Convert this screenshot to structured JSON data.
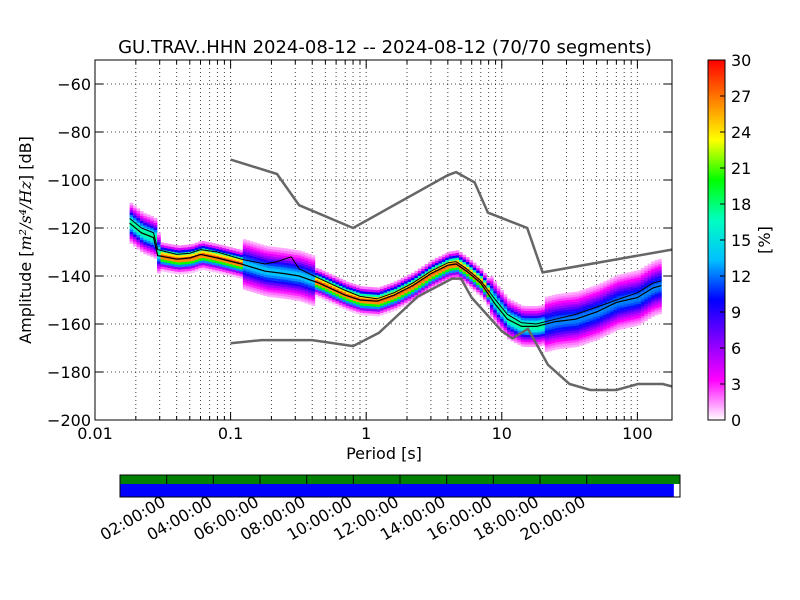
{
  "chart_data": {
    "type": "heatmap",
    "title": "GU.TRAV..HHN   2024-08-12 -- 2024-08-12  (70/70 segments)",
    "xlabel": "Period [s]",
    "ylabel_prefix": "Amplitude [",
    "ylabel_unit_math": "m²/s⁴/Hz",
    "ylabel_suffix": "] [dB]",
    "x_scale": "log",
    "xlim": [
      0.01,
      180
    ],
    "ylim": [
      -200,
      -50
    ],
    "grid": true,
    "x_ticks": [
      {
        "value": 0.01,
        "label": "0.01"
      },
      {
        "value": 0.1,
        "label": "0.1"
      },
      {
        "value": 1,
        "label": "1"
      },
      {
        "value": 10,
        "label": "10"
      },
      {
        "value": 100,
        "label": "100"
      }
    ],
    "y_ticks": [
      {
        "value": -60,
        "label": "−60"
      },
      {
        "value": -80,
        "label": "−80"
      },
      {
        "value": -100,
        "label": "−100"
      },
      {
        "value": -120,
        "label": "−120"
      },
      {
        "value": -140,
        "label": "−140"
      },
      {
        "value": -160,
        "label": "−160"
      },
      {
        "value": -180,
        "label": "−180"
      },
      {
        "value": -200,
        "label": "−200"
      }
    ],
    "colorbar": {
      "label": "[%]",
      "range": [
        0,
        30
      ],
      "ticks": [
        "0",
        "3",
        "6",
        "9",
        "12",
        "15",
        "18",
        "21",
        "24",
        "27",
        "30"
      ],
      "colormap": [
        "#ffffff",
        "#ff00ff",
        "#8000ff",
        "#0000ff",
        "#00c0ff",
        "#00ffc0",
        "#00ff00",
        "#ffff00",
        "#ff8000",
        "#ff0000"
      ]
    },
    "noise_model_high": [
      [
        0.1,
        -91.5
      ],
      [
        0.22,
        -97.5
      ],
      [
        0.32,
        -110.5
      ],
      [
        0.8,
        -120
      ],
      [
        4,
        -98
      ],
      [
        4.6,
        -96.7
      ],
      [
        6.3,
        -101
      ],
      [
        7.9,
        -113.6
      ],
      [
        15.4,
        -120
      ],
      [
        20,
        -138.5
      ],
      [
        180,
        -129
      ]
    ],
    "noise_model_low": [
      [
        0.1,
        -168
      ],
      [
        0.17,
        -166.7
      ],
      [
        0.4,
        -166.7
      ],
      [
        0.8,
        -169.2
      ],
      [
        1.24,
        -163.7
      ],
      [
        2.4,
        -148.6
      ],
      [
        4.3,
        -141.1
      ],
      [
        5,
        -141.1
      ],
      [
        6,
        -149
      ],
      [
        10,
        -163
      ],
      [
        12,
        -166
      ],
      [
        15.6,
        -162
      ],
      [
        21.9,
        -177
      ],
      [
        31.6,
        -185
      ],
      [
        45,
        -187.5
      ],
      [
        70,
        -187.5
      ],
      [
        101,
        -185
      ],
      [
        154,
        -185
      ],
      [
        180,
        -186
      ]
    ],
    "mode_curve": [
      [
        0.018,
        -118
      ],
      [
        0.022,
        -122
      ],
      [
        0.027,
        -124
      ],
      [
        0.029,
        -131.5
      ],
      [
        0.04,
        -133
      ],
      [
        0.05,
        -132.5
      ],
      [
        0.06,
        -131
      ],
      [
        0.08,
        -132.5
      ],
      [
        0.12,
        -135
      ],
      [
        0.18,
        -138
      ],
      [
        0.25,
        -139
      ],
      [
        0.32,
        -140
      ],
      [
        0.45,
        -143
      ],
      [
        0.7,
        -148
      ],
      [
        0.9,
        -150
      ],
      [
        1.2,
        -150.5
      ],
      [
        1.6,
        -148
      ],
      [
        2.2,
        -144
      ],
      [
        3,
        -139
      ],
      [
        4,
        -135.5
      ],
      [
        4.6,
        -135
      ],
      [
        5.5,
        -138
      ],
      [
        7,
        -143
      ],
      [
        9,
        -152
      ],
      [
        11,
        -158
      ],
      [
        14,
        -161
      ],
      [
        18,
        -161
      ],
      [
        25,
        -159
      ],
      [
        35,
        -158
      ],
      [
        50,
        -155
      ],
      [
        70,
        -151
      ],
      [
        100,
        -149
      ],
      [
        130,
        -145
      ],
      [
        150,
        -144
      ]
    ],
    "mean_curve": [
      [
        0.018,
        -116
      ],
      [
        0.022,
        -120
      ],
      [
        0.027,
        -122
      ],
      [
        0.029,
        -129
      ],
      [
        0.04,
        -131
      ],
      [
        0.05,
        -130.5
      ],
      [
        0.06,
        -129
      ],
      [
        0.08,
        -130
      ],
      [
        0.12,
        -133
      ],
      [
        0.18,
        -135
      ],
      [
        0.22,
        -134
      ],
      [
        0.28,
        -132
      ],
      [
        0.32,
        -137
      ],
      [
        0.45,
        -141
      ],
      [
        0.7,
        -146
      ],
      [
        0.9,
        -148.5
      ],
      [
        1.2,
        -149.5
      ],
      [
        1.6,
        -147
      ],
      [
        2.2,
        -143
      ],
      [
        3,
        -138
      ],
      [
        4,
        -134.5
      ],
      [
        4.6,
        -134
      ],
      [
        5.5,
        -137
      ],
      [
        7,
        -142
      ],
      [
        9,
        -150
      ],
      [
        11,
        -156
      ],
      [
        14,
        -159.5
      ],
      [
        18,
        -160
      ],
      [
        25,
        -158
      ],
      [
        35,
        -156
      ],
      [
        50,
        -153
      ],
      [
        70,
        -150
      ],
      [
        100,
        -147
      ],
      [
        130,
        -143
      ],
      [
        150,
        -142
      ]
    ],
    "time_axis": {
      "tick_labels": [
        "02:00:00",
        "04:00:00",
        "06:00:00",
        "08:00:00",
        "10:00:00",
        "12:00:00",
        "14:00:00",
        "16:00:00",
        "18:00:00",
        "20:00:00"
      ],
      "data_coverage_fraction": 1.0,
      "processed_fraction": 0.989,
      "data_color": "#008000",
      "processed_color": "#0000ff"
    }
  }
}
